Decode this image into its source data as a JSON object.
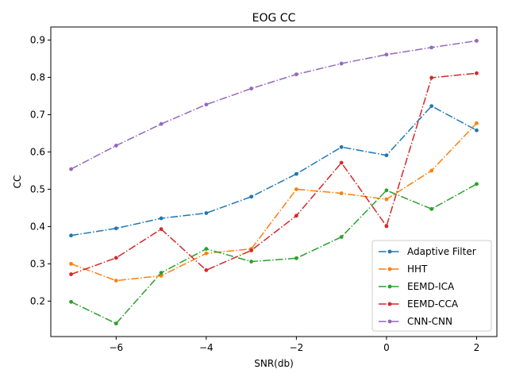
{
  "chart_data": {
    "type": "line",
    "title": "EOG CC",
    "xlabel": "SNR(db)",
    "ylabel": "CC",
    "x": [
      -7,
      -6,
      -5,
      -4,
      -3,
      -2,
      -1,
      0,
      1,
      2
    ],
    "xlim": [
      -7.45,
      2.45
    ],
    "ylim": [
      0.105,
      0.935
    ],
    "xticks": [
      -6,
      -4,
      -2,
      0,
      2
    ],
    "yticks": [
      0.2,
      0.3,
      0.4,
      0.5,
      0.6,
      0.7,
      0.8,
      0.9
    ],
    "grid": false,
    "legend_position": "lower-right",
    "series": [
      {
        "name": "Adaptive Filter",
        "color": "#1f77b4",
        "linestyle": "dashdot",
        "values": [
          0.376,
          0.395,
          0.422,
          0.436,
          0.48,
          0.541,
          0.613,
          0.591,
          0.723,
          0.658
        ]
      },
      {
        "name": "HHT",
        "color": "#ff7f0e",
        "linestyle": "dashdot",
        "values": [
          0.3,
          0.255,
          0.268,
          0.328,
          0.34,
          0.5,
          0.489,
          0.473,
          0.55,
          0.677
        ]
      },
      {
        "name": "EEMD-ICA",
        "color": "#2ca02c",
        "linestyle": "dashdot",
        "values": [
          0.198,
          0.14,
          0.276,
          0.34,
          0.306,
          0.315,
          0.372,
          0.497,
          0.447,
          0.514
        ]
      },
      {
        "name": "EEMD-CCA",
        "color": "#d62728",
        "linestyle": "dashdot",
        "values": [
          0.272,
          0.316,
          0.393,
          0.283,
          0.336,
          0.429,
          0.571,
          0.401,
          0.799,
          0.811
        ]
      },
      {
        "name": "CNN-CNN",
        "color": "#9467bd",
        "linestyle": "dashdot",
        "values": [
          0.554,
          0.617,
          0.675,
          0.727,
          0.77,
          0.808,
          0.837,
          0.861,
          0.88,
          0.898
        ]
      }
    ]
  }
}
